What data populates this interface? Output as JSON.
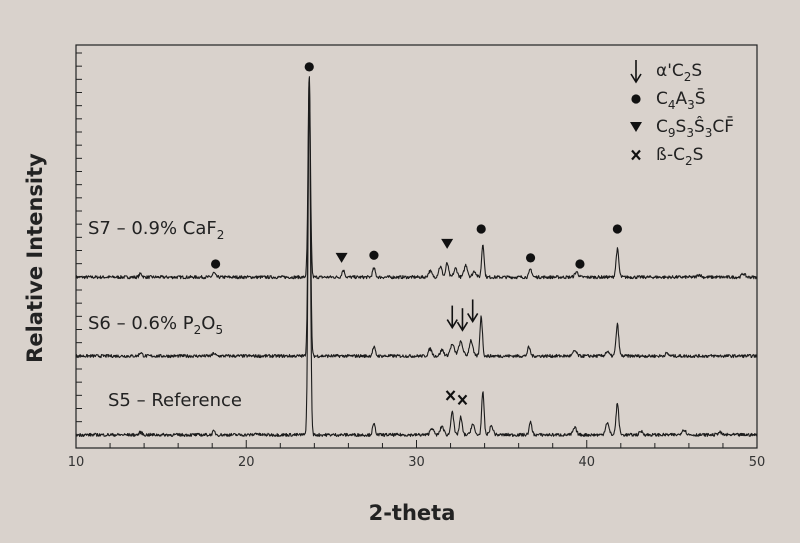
{
  "chart_data": {
    "type": "line",
    "xlabel": "2-theta",
    "ylabel": "Relative Intensity",
    "xlim": [
      10,
      50
    ],
    "xticks": [
      "10",
      "20",
      "30",
      "40",
      "50"
    ],
    "grid": false,
    "legend_position": "top-right",
    "legend": [
      {
        "marker": "arrow-down",
        "text": "α'C2S",
        "base": "α'C",
        "sub": "2",
        "tail": "S"
      },
      {
        "marker": "circle",
        "text": "C4A3S̄",
        "base": "C",
        "sub": "4",
        "mid": "A",
        "sub2": "3",
        "tail": "S̄"
      },
      {
        "marker": "triangle-down",
        "text": "C9S3Ŝ3CF̄",
        "base": "C",
        "sub": "9",
        "mid": "S",
        "sub2": "3",
        "mid2": "Ŝ",
        "sub3": "3",
        "tail": "CF̄"
      },
      {
        "marker": "x",
        "text": "ß-C2S",
        "base": "ß-C",
        "sub": "2",
        "tail": "S"
      }
    ],
    "series": [
      {
        "name": "S7 – 0.9% CaF2",
        "label_base": "S7 – 0.9% CaF",
        "label_sub": "2",
        "baseline": 1.95,
        "noise": 0.018,
        "peaks": [
          {
            "x": 13.8,
            "h": 0.04,
            "w": 0.08
          },
          {
            "x": 18.1,
            "h": 0.05,
            "w": 0.08
          },
          {
            "x": 23.7,
            "h": 2.3,
            "w": 0.07
          },
          {
            "x": 25.7,
            "h": 0.08,
            "w": 0.08
          },
          {
            "x": 27.5,
            "h": 0.1,
            "w": 0.08
          },
          {
            "x": 30.8,
            "h": 0.07,
            "w": 0.1
          },
          {
            "x": 31.4,
            "h": 0.12,
            "w": 0.1
          },
          {
            "x": 31.8,
            "h": 0.16,
            "w": 0.08
          },
          {
            "x": 32.3,
            "h": 0.1,
            "w": 0.1
          },
          {
            "x": 32.9,
            "h": 0.14,
            "w": 0.1
          },
          {
            "x": 33.4,
            "h": 0.07,
            "w": 0.1
          },
          {
            "x": 33.9,
            "h": 0.38,
            "w": 0.07
          },
          {
            "x": 36.7,
            "h": 0.09,
            "w": 0.08
          },
          {
            "x": 39.4,
            "h": 0.06,
            "w": 0.1
          },
          {
            "x": 41.8,
            "h": 0.32,
            "w": 0.08
          },
          {
            "x": 46.6,
            "h": 0.03,
            "w": 0.1
          },
          {
            "x": 49.2,
            "h": 0.04,
            "w": 0.1
          }
        ]
      },
      {
        "name": "S6 – 0.6% P2O5",
        "label_base": "S6 – 0.6% P",
        "label_sub": "2",
        "label_mid": "O",
        "label_sub2": "5",
        "baseline": 1.05,
        "noise": 0.018,
        "peaks": [
          {
            "x": 13.8,
            "h": 0.04,
            "w": 0.08
          },
          {
            "x": 18.1,
            "h": 0.03,
            "w": 0.08
          },
          {
            "x": 23.7,
            "h": 3.2,
            "w": 0.07
          },
          {
            "x": 27.5,
            "h": 0.1,
            "w": 0.08
          },
          {
            "x": 30.8,
            "h": 0.08,
            "w": 0.1
          },
          {
            "x": 31.5,
            "h": 0.07,
            "w": 0.1
          },
          {
            "x": 32.1,
            "h": 0.13,
            "w": 0.12
          },
          {
            "x": 32.6,
            "h": 0.16,
            "w": 0.12
          },
          {
            "x": 33.2,
            "h": 0.18,
            "w": 0.1
          },
          {
            "x": 33.8,
            "h": 0.46,
            "w": 0.07
          },
          {
            "x": 36.6,
            "h": 0.1,
            "w": 0.08
          },
          {
            "x": 39.3,
            "h": 0.06,
            "w": 0.1
          },
          {
            "x": 41.2,
            "h": 0.05,
            "w": 0.1
          },
          {
            "x": 41.8,
            "h": 0.36,
            "w": 0.08
          },
          {
            "x": 44.7,
            "h": 0.03,
            "w": 0.1
          }
        ]
      },
      {
        "name": "S5 – Reference",
        "baseline": 0.15,
        "noise": 0.018,
        "peaks": [
          {
            "x": 13.8,
            "h": 0.03,
            "w": 0.08
          },
          {
            "x": 18.1,
            "h": 0.04,
            "w": 0.08
          },
          {
            "x": 20.6,
            "h": 0.02,
            "w": 0.08
          },
          {
            "x": 23.7,
            "h": 4.0,
            "w": 0.07
          },
          {
            "x": 27.5,
            "h": 0.12,
            "w": 0.08
          },
          {
            "x": 30.9,
            "h": 0.08,
            "w": 0.1
          },
          {
            "x": 31.5,
            "h": 0.1,
            "w": 0.1
          },
          {
            "x": 32.1,
            "h": 0.28,
            "w": 0.08
          },
          {
            "x": 32.6,
            "h": 0.2,
            "w": 0.08
          },
          {
            "x": 33.3,
            "h": 0.12,
            "w": 0.1
          },
          {
            "x": 33.9,
            "h": 0.48,
            "w": 0.07
          },
          {
            "x": 34.4,
            "h": 0.1,
            "w": 0.1
          },
          {
            "x": 36.7,
            "h": 0.14,
            "w": 0.08
          },
          {
            "x": 39.3,
            "h": 0.08,
            "w": 0.1
          },
          {
            "x": 41.2,
            "h": 0.14,
            "w": 0.1
          },
          {
            "x": 41.8,
            "h": 0.36,
            "w": 0.08
          },
          {
            "x": 43.2,
            "h": 0.04,
            "w": 0.1
          },
          {
            "x": 45.7,
            "h": 0.06,
            "w": 0.12
          },
          {
            "x": 47.8,
            "h": 0.03,
            "w": 0.1
          }
        ]
      }
    ],
    "annotations": [
      {
        "type": "circle",
        "x": 23.7,
        "y": 4.35
      },
      {
        "type": "circle",
        "x": 18.2,
        "y": 2.1
      },
      {
        "type": "circle",
        "x": 27.5,
        "y": 2.2
      },
      {
        "type": "circle",
        "x": 33.8,
        "y": 2.5
      },
      {
        "type": "circle",
        "x": 36.7,
        "y": 2.17
      },
      {
        "type": "circle",
        "x": 39.6,
        "y": 2.1
      },
      {
        "type": "circle",
        "x": 41.8,
        "y": 2.5
      },
      {
        "type": "triangle-down",
        "x": 25.6,
        "y": 2.17
      },
      {
        "type": "triangle-down",
        "x": 31.8,
        "y": 2.33
      },
      {
        "type": "arrow-down",
        "x": 32.1,
        "y": 1.5
      },
      {
        "type": "arrow-down",
        "x": 32.7,
        "y": 1.47
      },
      {
        "type": "arrow-down",
        "x": 33.3,
        "y": 1.57
      },
      {
        "type": "x",
        "x": 32.0,
        "y": 0.6
      },
      {
        "type": "x",
        "x": 32.7,
        "y": 0.55
      }
    ]
  }
}
